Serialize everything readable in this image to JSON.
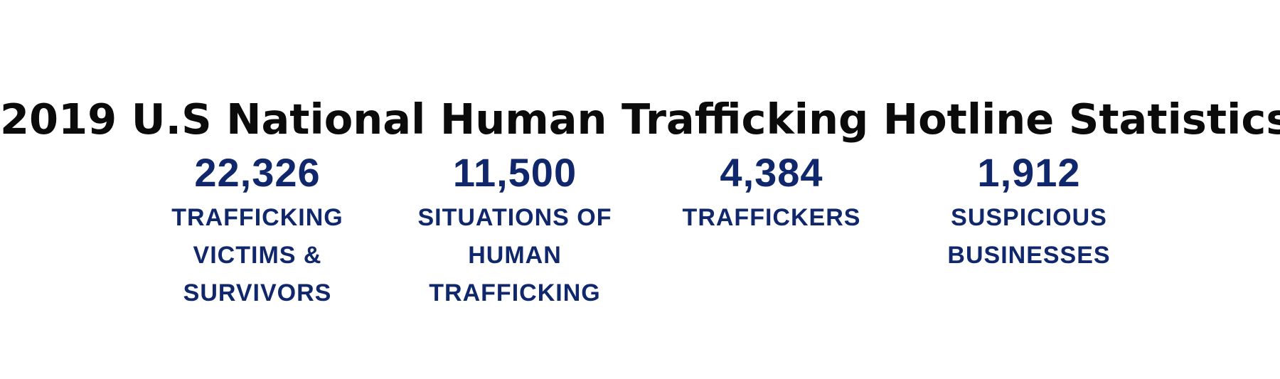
{
  "title": "2019 U.S National Human Trafficking Hotline Statistics",
  "colors": {
    "title": "#0b0b0b",
    "stat": "#10286b",
    "background": "#ffffff"
  },
  "stats": [
    {
      "value": "22,326",
      "label": "TRAFFICKING VICTIMS & SURVIVORS"
    },
    {
      "value": "11,500",
      "label": "SITUATIONS OF HUMAN TRAFFICKING"
    },
    {
      "value": "4,384",
      "label": "TRAFFICKERS"
    },
    {
      "value": "1,912",
      "label": "SUSPICIOUS BUSINESSES"
    }
  ]
}
